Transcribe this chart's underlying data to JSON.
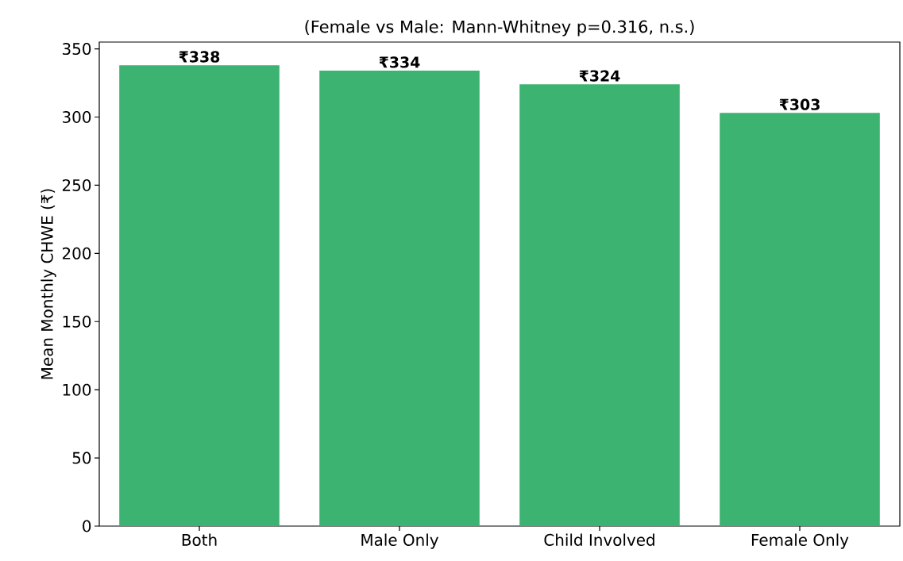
{
  "chart_data": {
    "type": "bar",
    "subtitle": "(Female vs Male: Mann-Whitney p=0.316, n.s.)",
    "ylabel": "Mean Monthly CHWE (₹)",
    "categories": [
      "Both",
      "Male Only",
      "Child Involved",
      "Female Only"
    ],
    "values": [
      338,
      334,
      324,
      303
    ],
    "value_labels": [
      "₹338",
      "₹334",
      "₹324",
      "₹303"
    ],
    "color": "#3cb371",
    "ylim": [
      0,
      355
    ],
    "yticks": [
      0,
      50,
      100,
      150,
      200,
      250,
      300,
      350
    ],
    "grid": false
  }
}
